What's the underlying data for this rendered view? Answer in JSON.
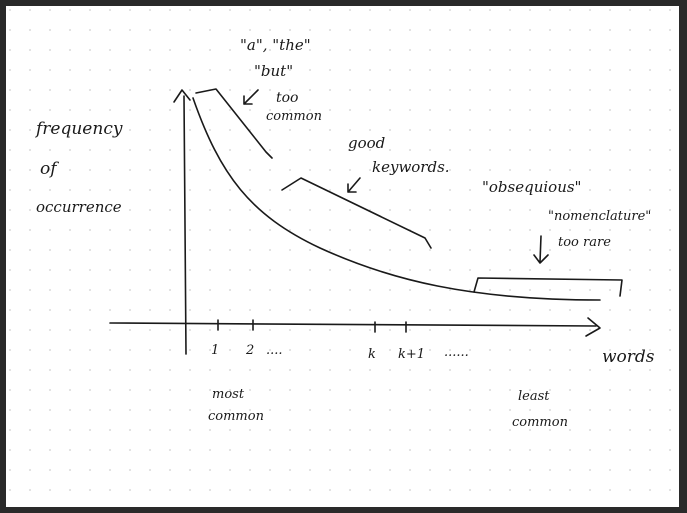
{
  "axes": {
    "y_label": [
      "frequency",
      "of",
      "occurrence"
    ],
    "x_label": "words",
    "tick_labels": [
      "1",
      "2",
      "....",
      "k",
      "k+1",
      "......"
    ],
    "x_left_note": [
      "most",
      "common"
    ],
    "x_right_note": [
      "least",
      "common"
    ]
  },
  "annotations": {
    "common_words": [
      "\"a\", \"the\"",
      "\"but\""
    ],
    "too_common": [
      "too",
      "common"
    ],
    "good": [
      "good",
      "keywords."
    ],
    "rare_words": [
      "\"obsequious\"",
      "\"nomenclature\""
    ],
    "too_rare": "too rare"
  },
  "colors": {
    "ink": "#1a1a1a",
    "paper": "#ffffff",
    "grid_dot": "#cfcfcf",
    "frame": "#2a2a2a"
  }
}
